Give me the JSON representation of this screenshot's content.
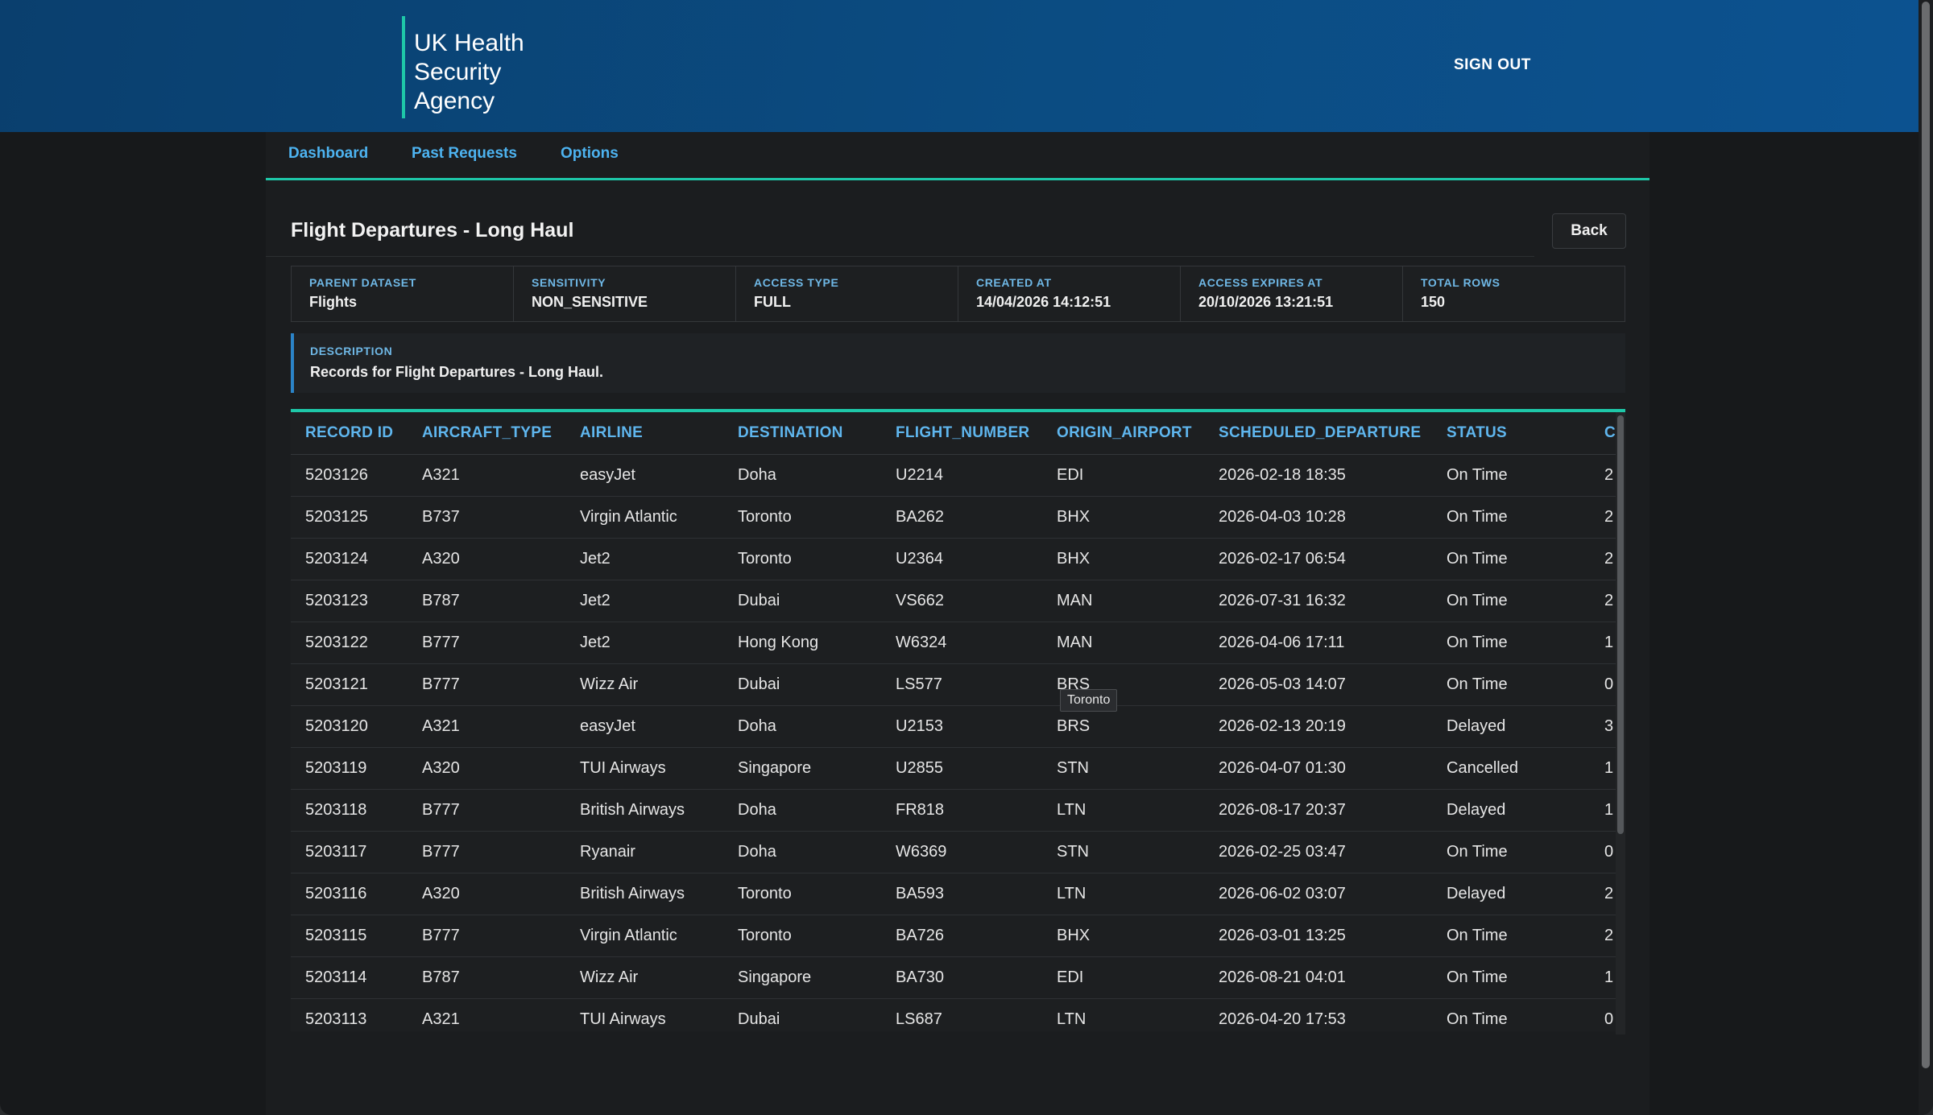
{
  "header": {
    "logo_lines": [
      "UK Health",
      "Security",
      "Agency"
    ],
    "sign_out_label": "SIGN OUT"
  },
  "nav": {
    "items": [
      {
        "label": "Dashboard"
      },
      {
        "label": "Past Requests"
      },
      {
        "label": "Options"
      }
    ]
  },
  "page": {
    "title": "Flight Departures - Long Haul",
    "back_label": "Back"
  },
  "meta": [
    {
      "label": "PARENT DATASET",
      "value": "Flights"
    },
    {
      "label": "SENSITIVITY",
      "value": "NON_SENSITIVE"
    },
    {
      "label": "ACCESS TYPE",
      "value": "FULL"
    },
    {
      "label": "CREATED AT",
      "value": "14/04/2026 14:12:51"
    },
    {
      "label": "ACCESS EXPIRES AT",
      "value": "20/10/2026 13:21:51"
    },
    {
      "label": "TOTAL ROWS",
      "value": "150"
    }
  ],
  "description": {
    "label": "DESCRIPTION",
    "value": "Records for Flight Departures - Long Haul."
  },
  "table": {
    "columns": [
      "RECORD ID",
      "AIRCRAFT_TYPE",
      "AIRLINE",
      "DESTINATION",
      "FLIGHT_NUMBER",
      "ORIGIN_AIRPORT",
      "SCHEDULED_DEPARTURE",
      "STATUS",
      "C"
    ],
    "rows": [
      [
        "5203126",
        "A321",
        "easyJet",
        "Doha",
        "U2214",
        "EDI",
        "2026-02-18 18:35",
        "On Time",
        "2"
      ],
      [
        "5203125",
        "B737",
        "Virgin Atlantic",
        "Toronto",
        "BA262",
        "BHX",
        "2026-04-03 10:28",
        "On Time",
        "2"
      ],
      [
        "5203124",
        "A320",
        "Jet2",
        "Toronto",
        "U2364",
        "BHX",
        "2026-02-17 06:54",
        "On Time",
        "2"
      ],
      [
        "5203123",
        "B787",
        "Jet2",
        "Dubai",
        "VS662",
        "MAN",
        "2026-07-31 16:32",
        "On Time",
        "2"
      ],
      [
        "5203122",
        "B777",
        "Jet2",
        "Hong Kong",
        "W6324",
        "MAN",
        "2026-04-06 17:11",
        "On Time",
        "1"
      ],
      [
        "5203121",
        "B777",
        "Wizz Air",
        "Dubai",
        "LS577",
        "BRS",
        "2026-05-03 14:07",
        "On Time",
        "0"
      ],
      [
        "5203120",
        "A321",
        "easyJet",
        "Doha",
        "U2153",
        "BRS",
        "2026-02-13 20:19",
        "Delayed",
        "3"
      ],
      [
        "5203119",
        "A320",
        "TUI Airways",
        "Singapore",
        "U2855",
        "STN",
        "2026-04-07 01:30",
        "Cancelled",
        "1"
      ],
      [
        "5203118",
        "B777",
        "British Airways",
        "Doha",
        "FR818",
        "LTN",
        "2026-08-17 20:37",
        "Delayed",
        "1"
      ],
      [
        "5203117",
        "B777",
        "Ryanair",
        "Doha",
        "W6369",
        "STN",
        "2026-02-25 03:47",
        "On Time",
        "0"
      ],
      [
        "5203116",
        "A320",
        "British Airways",
        "Toronto",
        "BA593",
        "LTN",
        "2026-06-02 03:07",
        "Delayed",
        "2"
      ],
      [
        "5203115",
        "B777",
        "Virgin Atlantic",
        "Toronto",
        "BA726",
        "BHX",
        "2026-03-01 13:25",
        "On Time",
        "2"
      ],
      [
        "5203114",
        "B787",
        "Wizz Air",
        "Singapore",
        "BA730",
        "EDI",
        "2026-08-21 04:01",
        "On Time",
        "1"
      ],
      [
        "5203113",
        "A321",
        "TUI Airways",
        "Dubai",
        "LS687",
        "LTN",
        "2026-04-20 17:53",
        "On Time",
        "0"
      ]
    ]
  },
  "tooltip": {
    "text": "Toronto"
  }
}
